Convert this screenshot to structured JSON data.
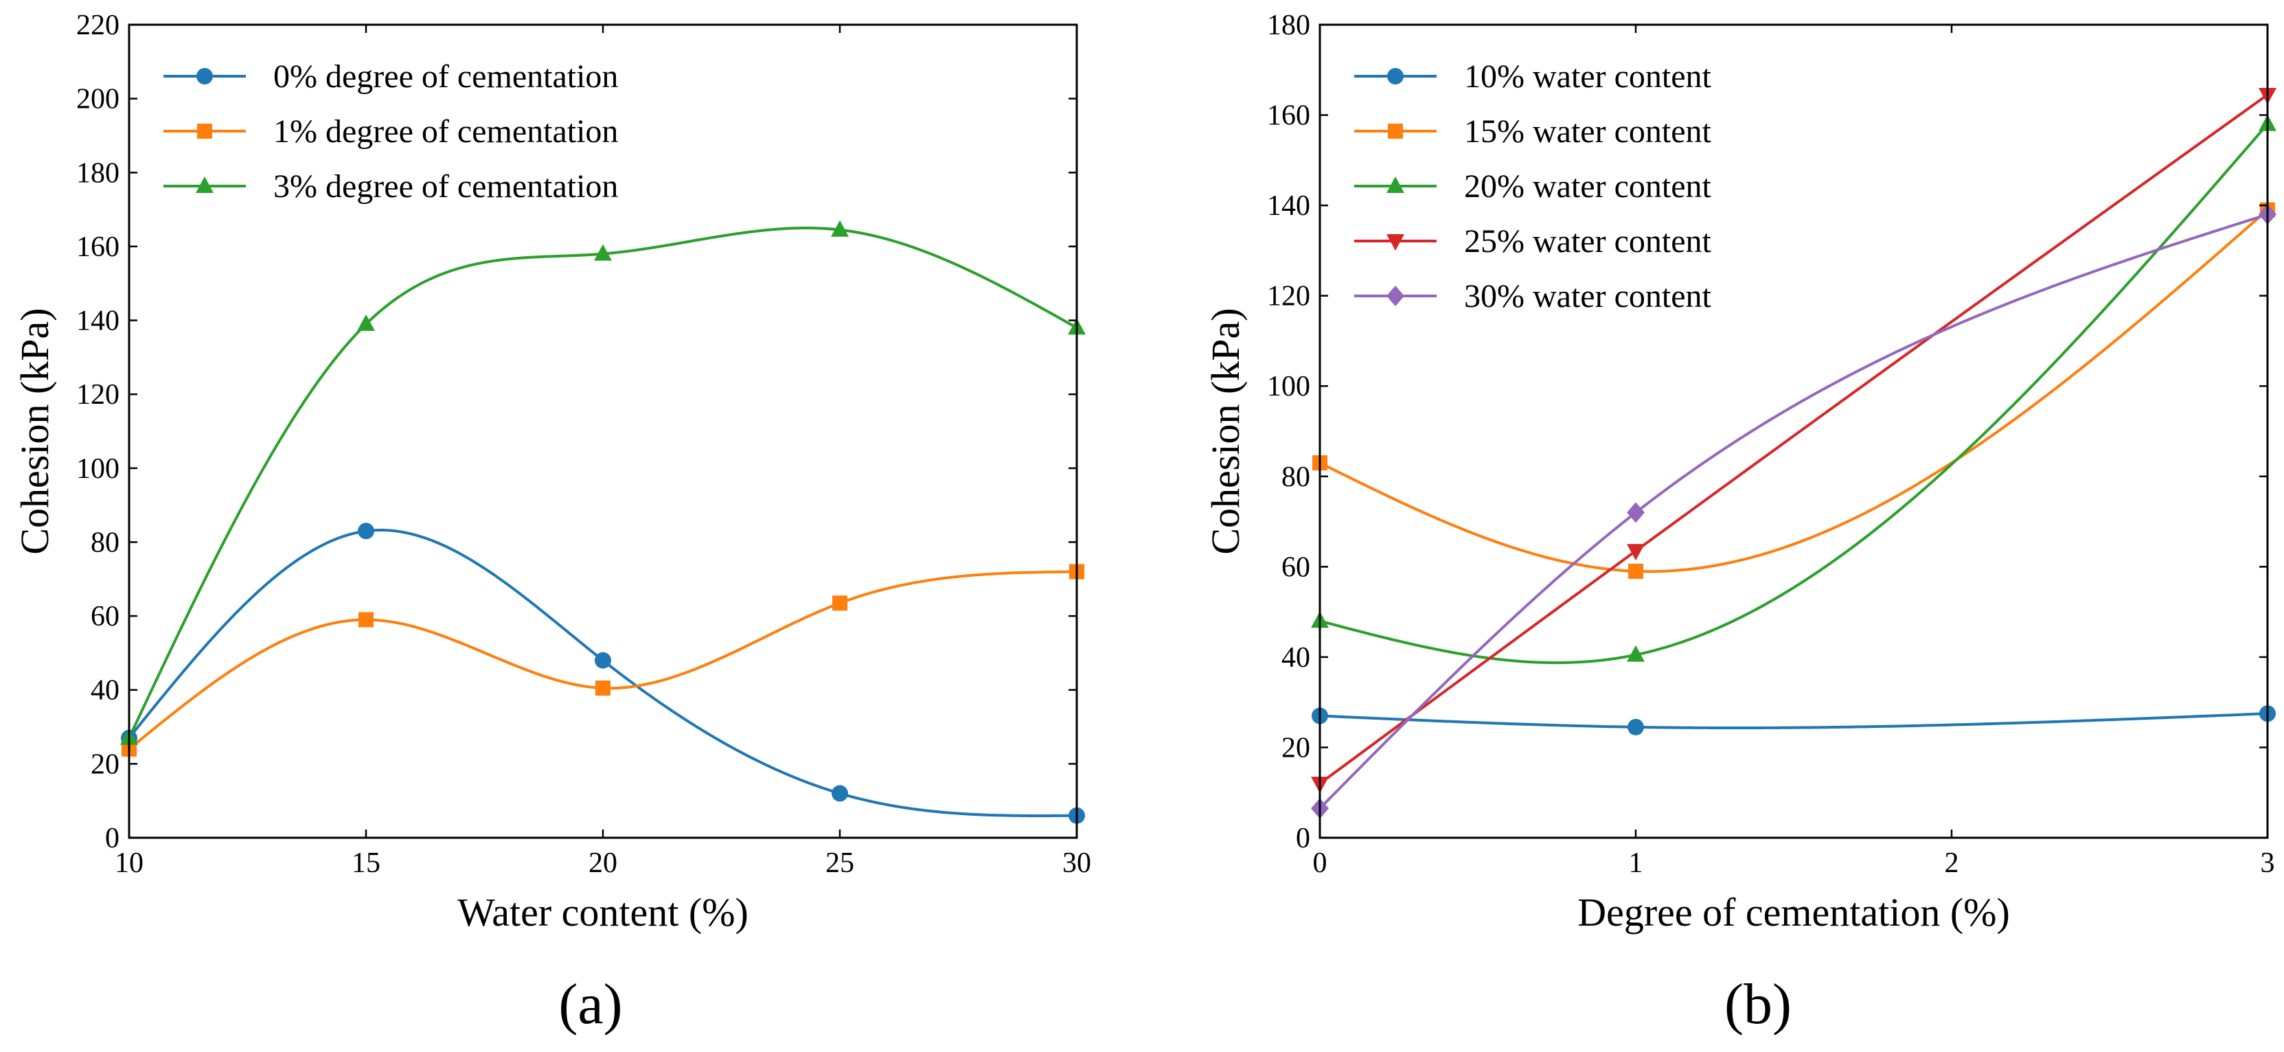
{
  "chart_data": [
    {
      "type": "line",
      "panel_label": "(a)",
      "xlabel": "Water content (%)",
      "ylabel": "Cohesion (kPa)",
      "xlim": [
        10,
        30
      ],
      "ylim": [
        0,
        220
      ],
      "x_ticks": [
        10,
        15,
        20,
        25,
        30
      ],
      "y_ticks": [
        0,
        20,
        40,
        60,
        80,
        100,
        120,
        140,
        160,
        180,
        200,
        220
      ],
      "legend_position": "top-left",
      "grid": false,
      "x": [
        10,
        15,
        20,
        25,
        30
      ],
      "series": [
        {
          "name": "0% degree of cementation",
          "values": [
            27,
            83,
            48,
            12,
            6
          ],
          "color": "#1f77b4",
          "marker": "circle"
        },
        {
          "name": "1% degree of cementation",
          "values": [
            24,
            59,
            40.5,
            63.5,
            72
          ],
          "color": "#ff7f0e",
          "marker": "square"
        },
        {
          "name": "3% degree of cementation",
          "values": [
            27,
            139,
            158,
            164.5,
            138
          ],
          "color": "#2ca02c",
          "marker": "triangle-up"
        }
      ]
    },
    {
      "type": "line",
      "panel_label": "(b)",
      "xlabel": "Degree of cementation (%)",
      "ylabel": "Cohesion (kPa)",
      "xlim": [
        0,
        3
      ],
      "ylim": [
        0,
        180
      ],
      "x_ticks": [
        0,
        1,
        2,
        3
      ],
      "y_ticks": [
        0,
        20,
        40,
        60,
        80,
        100,
        120,
        140,
        160,
        180
      ],
      "legend_position": "top-left",
      "grid": false,
      "x": [
        0,
        1,
        3
      ],
      "series": [
        {
          "name": "10% water content",
          "values": [
            27,
            24.5,
            27.5
          ],
          "color": "#1f77b4",
          "marker": "circle"
        },
        {
          "name": "15% water content",
          "values": [
            83,
            59,
            139
          ],
          "color": "#ff7f0e",
          "marker": "square"
        },
        {
          "name": "20% water content",
          "values": [
            48,
            40.5,
            158
          ],
          "color": "#2ca02c",
          "marker": "triangle-up"
        },
        {
          "name": "25% water content",
          "values": [
            12,
            63.5,
            164.5
          ],
          "color": "#d62728",
          "marker": "triangle-down"
        },
        {
          "name": "30% water content",
          "values": [
            6.5,
            72,
            138
          ],
          "color": "#9467bd",
          "marker": "diamond"
        }
      ]
    }
  ]
}
